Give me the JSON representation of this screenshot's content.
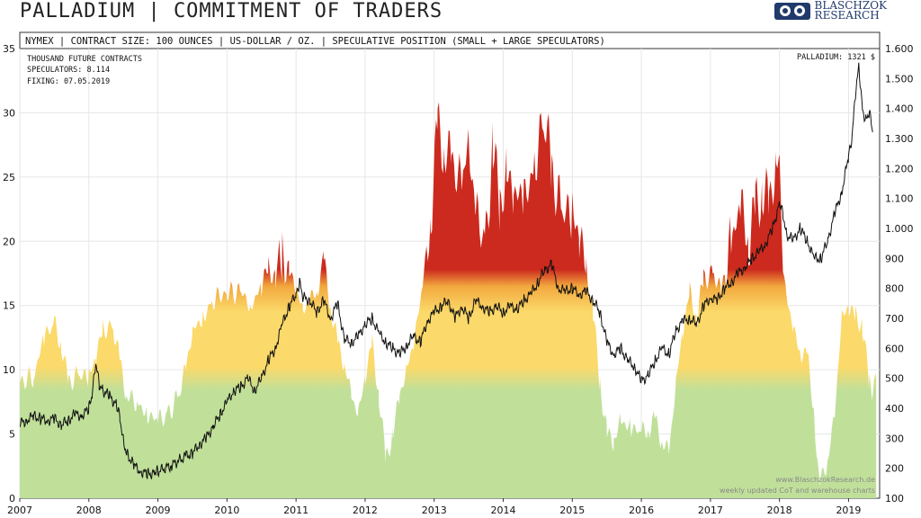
{
  "header": {
    "title": "PALLADIUM | COMMITMENT OF TRADERS",
    "logo_line1": "BLASCHZOK",
    "logo_line2": "RESEARCH",
    "subtitle": "NYMEX | CONTRACT SIZE: 100 OUNCES | US-DOLLAR / OZ. | SPECULATIVE POSITION (SMALL + LARGE SPECULATORS)"
  },
  "annotations": {
    "units": "THOUSAND FUTURE CONTRACTS",
    "speculators": "SPECULATORS: 8.114",
    "fixing": "FIXING: 07.05.2019",
    "price_label": "PALLADIUM: 1321 $",
    "footer1": "www.BlaschzokResearch.de",
    "footer2": "weekly updated CoT and warehouse charts"
  },
  "colors": {
    "green": "#c0e09a",
    "yellow": "#fbd96a",
    "orange": "#f2a83e",
    "red": "#cc2a1e",
    "line": "#111111"
  },
  "chart_data": {
    "type": "area",
    "left_axis": {
      "ylim": [
        0,
        35
      ],
      "ticks": [
        0,
        5,
        10,
        15,
        20,
        25,
        30,
        35
      ],
      "label": ""
    },
    "right_axis": {
      "ylim": [
        100,
        1600
      ],
      "ticks": [
        "100",
        "200",
        "300",
        "400",
        "500",
        "600",
        "700",
        "800",
        "900",
        "1.000",
        "1.100",
        "1.200",
        "1.300",
        "1.400",
        "1.500",
        "1.600"
      ],
      "label": ""
    },
    "x_ticks": [
      "2007",
      "2008",
      "2009",
      "2010",
      "2011",
      "2012",
      "2013",
      "2014",
      "2015",
      "2016",
      "2017",
      "2018",
      "2019"
    ],
    "xlim": [
      2007.0,
      2019.45
    ],
    "series": [
      {
        "axis": "left",
        "points": [
          [
            2007.0,
            9.0
          ],
          [
            2007.2,
            9.5
          ],
          [
            2007.35,
            12.5
          ],
          [
            2007.5,
            13.5
          ],
          [
            2007.6,
            12.0
          ],
          [
            2007.7,
            9.0
          ],
          [
            2007.85,
            9.5
          ],
          [
            2008.0,
            9.5
          ],
          [
            2008.1,
            11.0
          ],
          [
            2008.2,
            13.0
          ],
          [
            2008.35,
            13.5
          ],
          [
            2008.45,
            10.5
          ],
          [
            2008.55,
            8.0
          ],
          [
            2008.7,
            7.5
          ],
          [
            2008.85,
            6.5
          ],
          [
            2009.0,
            6.0
          ],
          [
            2009.15,
            6.5
          ],
          [
            2009.3,
            8.0
          ],
          [
            2009.4,
            10.0
          ],
          [
            2009.5,
            13.0
          ],
          [
            2009.65,
            14.0
          ],
          [
            2009.8,
            15.5
          ],
          [
            2010.0,
            16.0
          ],
          [
            2010.2,
            16.0
          ],
          [
            2010.35,
            15.0
          ],
          [
            2010.5,
            16.5
          ],
          [
            2010.6,
            18.0
          ],
          [
            2010.7,
            17.0
          ],
          [
            2010.8,
            19.5
          ],
          [
            2010.9,
            17.5
          ],
          [
            2011.0,
            16.5
          ],
          [
            2011.1,
            14.5
          ],
          [
            2011.2,
            15.5
          ],
          [
            2011.3,
            16.0
          ],
          [
            2011.4,
            18.5
          ],
          [
            2011.5,
            15.0
          ],
          [
            2011.6,
            12.0
          ],
          [
            2011.7,
            10.5
          ],
          [
            2011.8,
            8.0
          ],
          [
            2011.9,
            6.5
          ],
          [
            2012.0,
            9.5
          ],
          [
            2012.1,
            12.0
          ],
          [
            2012.2,
            8.0
          ],
          [
            2012.3,
            3.0
          ],
          [
            2012.4,
            5.0
          ],
          [
            2012.5,
            8.0
          ],
          [
            2012.6,
            10.0
          ],
          [
            2012.7,
            12.0
          ],
          [
            2012.85,
            17.0
          ],
          [
            2012.95,
            22.0
          ],
          [
            2013.05,
            29.0
          ],
          [
            2013.15,
            27.0
          ],
          [
            2013.25,
            26.5
          ],
          [
            2013.4,
            24.0
          ],
          [
            2013.5,
            28.0
          ],
          [
            2013.6,
            22.0
          ],
          [
            2013.75,
            20.0
          ],
          [
            2013.85,
            27.5
          ],
          [
            2013.95,
            23.0
          ],
          [
            2014.05,
            25.0
          ],
          [
            2014.15,
            24.0
          ],
          [
            2014.3,
            23.0
          ],
          [
            2014.45,
            26.0
          ],
          [
            2014.6,
            30.0
          ],
          [
            2014.7,
            25.5
          ],
          [
            2014.85,
            22.0
          ],
          [
            2015.0,
            22.5
          ],
          [
            2015.1,
            20.5
          ],
          [
            2015.2,
            18.0
          ],
          [
            2015.3,
            14.5
          ],
          [
            2015.4,
            9.0
          ],
          [
            2015.5,
            5.0
          ],
          [
            2015.6,
            4.5
          ],
          [
            2015.7,
            6.0
          ],
          [
            2015.85,
            5.5
          ],
          [
            2016.0,
            5.0
          ],
          [
            2016.1,
            5.5
          ],
          [
            2016.2,
            6.0
          ],
          [
            2016.3,
            4.5
          ],
          [
            2016.4,
            3.5
          ],
          [
            2016.5,
            9.0
          ],
          [
            2016.6,
            13.0
          ],
          [
            2016.7,
            16.0
          ],
          [
            2016.8,
            14.0
          ],
          [
            2016.9,
            17.0
          ],
          [
            2017.05,
            17.5
          ],
          [
            2017.15,
            16.0
          ],
          [
            2017.3,
            20.0
          ],
          [
            2017.45,
            22.5
          ],
          [
            2017.55,
            20.0
          ],
          [
            2017.65,
            22.5
          ],
          [
            2017.75,
            24.0
          ],
          [
            2017.85,
            23.0
          ],
          [
            2017.95,
            26.0
          ],
          [
            2018.0,
            26.5
          ],
          [
            2018.05,
            18.0
          ],
          [
            2018.1,
            16.0
          ],
          [
            2018.2,
            13.0
          ],
          [
            2018.3,
            11.5
          ],
          [
            2018.4,
            11.0
          ],
          [
            2018.5,
            7.0
          ],
          [
            2018.55,
            2.5
          ],
          [
            2018.6,
            1.5
          ],
          [
            2018.7,
            3.0
          ],
          [
            2018.8,
            6.5
          ],
          [
            2018.9,
            14.0
          ],
          [
            2019.0,
            15.0
          ],
          [
            2019.1,
            14.0
          ],
          [
            2019.2,
            13.5
          ],
          [
            2019.3,
            9.0
          ],
          [
            2019.35,
            8.0
          ],
          [
            2019.4,
            9.5
          ]
        ]
      },
      {
        "axis": "right",
        "points": [
          [
            2007.0,
            350
          ],
          [
            2007.1,
            360
          ],
          [
            2007.2,
            375
          ],
          [
            2007.3,
            365
          ],
          [
            2007.4,
            360
          ],
          [
            2007.5,
            365
          ],
          [
            2007.6,
            345
          ],
          [
            2007.7,
            360
          ],
          [
            2007.8,
            380
          ],
          [
            2007.9,
            375
          ],
          [
            2008.0,
            400
          ],
          [
            2008.05,
            450
          ],
          [
            2008.1,
            550
          ],
          [
            2008.15,
            480
          ],
          [
            2008.2,
            460
          ],
          [
            2008.3,
            440
          ],
          [
            2008.4,
            410
          ],
          [
            2008.45,
            370
          ],
          [
            2008.5,
            290
          ],
          [
            2008.55,
            250
          ],
          [
            2008.65,
            210
          ],
          [
            2008.75,
            190
          ],
          [
            2008.85,
            180
          ],
          [
            2008.95,
            185
          ],
          [
            2009.0,
            190
          ],
          [
            2009.2,
            210
          ],
          [
            2009.4,
            240
          ],
          [
            2009.5,
            250
          ],
          [
            2009.6,
            280
          ],
          [
            2009.7,
            300
          ],
          [
            2009.8,
            340
          ],
          [
            2009.9,
            380
          ],
          [
            2010.0,
            420
          ],
          [
            2010.1,
            460
          ],
          [
            2010.2,
            470
          ],
          [
            2010.3,
            500
          ],
          [
            2010.4,
            460
          ],
          [
            2010.5,
            500
          ],
          [
            2010.6,
            560
          ],
          [
            2010.7,
            600
          ],
          [
            2010.8,
            680
          ],
          [
            2010.9,
            740
          ],
          [
            2011.0,
            780
          ],
          [
            2011.05,
            820
          ],
          [
            2011.1,
            770
          ],
          [
            2011.2,
            760
          ],
          [
            2011.3,
            720
          ],
          [
            2011.4,
            760
          ],
          [
            2011.5,
            700
          ],
          [
            2011.6,
            750
          ],
          [
            2011.7,
            630
          ],
          [
            2011.8,
            620
          ],
          [
            2011.9,
            640
          ],
          [
            2012.0,
            680
          ],
          [
            2012.1,
            700
          ],
          [
            2012.2,
            650
          ],
          [
            2012.3,
            620
          ],
          [
            2012.4,
            600
          ],
          [
            2012.5,
            580
          ],
          [
            2012.6,
            610
          ],
          [
            2012.7,
            640
          ],
          [
            2012.8,
            620
          ],
          [
            2012.9,
            690
          ],
          [
            2013.0,
            720
          ],
          [
            2013.1,
            740
          ],
          [
            2013.2,
            760
          ],
          [
            2013.3,
            700
          ],
          [
            2013.4,
            740
          ],
          [
            2013.5,
            700
          ],
          [
            2013.6,
            760
          ],
          [
            2013.7,
            740
          ],
          [
            2013.8,
            720
          ],
          [
            2013.9,
            740
          ],
          [
            2014.0,
            720
          ],
          [
            2014.1,
            740
          ],
          [
            2014.2,
            730
          ],
          [
            2014.3,
            760
          ],
          [
            2014.4,
            780
          ],
          [
            2014.5,
            820
          ],
          [
            2014.6,
            860
          ],
          [
            2014.7,
            880
          ],
          [
            2014.8,
            800
          ],
          [
            2014.9,
            790
          ],
          [
            2015.0,
            800
          ],
          [
            2015.1,
            780
          ],
          [
            2015.2,
            790
          ],
          [
            2015.3,
            760
          ],
          [
            2015.4,
            720
          ],
          [
            2015.5,
            620
          ],
          [
            2015.6,
            580
          ],
          [
            2015.7,
            600
          ],
          [
            2015.8,
            560
          ],
          [
            2015.9,
            540
          ],
          [
            2016.0,
            490
          ],
          [
            2016.1,
            510
          ],
          [
            2016.2,
            560
          ],
          [
            2016.3,
            600
          ],
          [
            2016.4,
            580
          ],
          [
            2016.5,
            660
          ],
          [
            2016.6,
            690
          ],
          [
            2016.7,
            700
          ],
          [
            2016.8,
            680
          ],
          [
            2016.9,
            740
          ],
          [
            2017.0,
            770
          ],
          [
            2017.1,
            760
          ],
          [
            2017.2,
            800
          ],
          [
            2017.3,
            820
          ],
          [
            2017.4,
            850
          ],
          [
            2017.5,
            870
          ],
          [
            2017.6,
            900
          ],
          [
            2017.7,
            920
          ],
          [
            2017.8,
            950
          ],
          [
            2017.9,
            1000
          ],
          [
            2018.0,
            1080
          ],
          [
            2018.05,
            1050
          ],
          [
            2018.1,
            980
          ],
          [
            2018.2,
            960
          ],
          [
            2018.3,
            1000
          ],
          [
            2018.4,
            960
          ],
          [
            2018.5,
            900
          ],
          [
            2018.6,
            900
          ],
          [
            2018.7,
            960
          ],
          [
            2018.8,
            1050
          ],
          [
            2018.9,
            1120
          ],
          [
            2019.0,
            1240
          ],
          [
            2019.05,
            1300
          ],
          [
            2019.1,
            1450
          ],
          [
            2019.15,
            1540
          ],
          [
            2019.2,
            1400
          ],
          [
            2019.25,
            1360
          ],
          [
            2019.3,
            1390
          ],
          [
            2019.35,
            1321
          ]
        ]
      }
    ]
  }
}
